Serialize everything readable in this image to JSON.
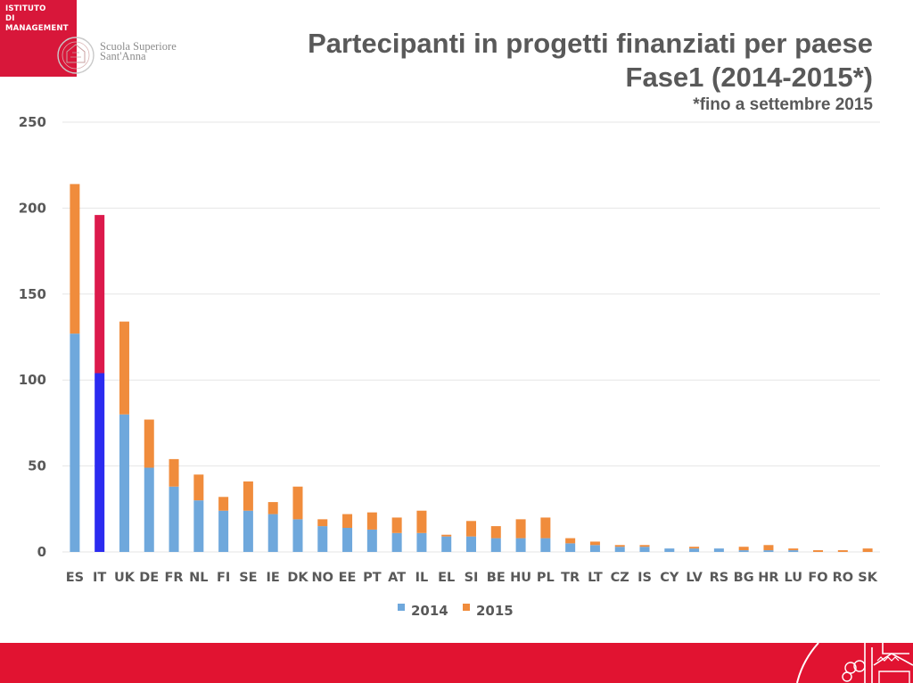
{
  "header": {
    "institute_line1": "ISTITUTO",
    "institute_line2": "DI MANAGEMENT",
    "school_line1": "Scuola Superiore",
    "school_line2": "Sant'Anna"
  },
  "colors": {
    "brand_red": "#d8173a",
    "series_2014": "#6fa8dc",
    "series_2015": "#f08c3c",
    "highlight_2014": "#2b2bf0",
    "highlight_2015": "#dc1a4c",
    "gridline": "#e6e6e6",
    "text": "#595959"
  },
  "chart_data": {
    "type": "bar",
    "stacked": true,
    "title": "Partecipanti in progetti finanziati per paese",
    "subtitle": "Fase1 (2014-2015*)",
    "note": "*fino a settembre 2015",
    "xlabel": "",
    "ylabel": "",
    "ylim": [
      0,
      250
    ],
    "yticks": [
      0,
      50,
      100,
      150,
      200,
      250
    ],
    "grid": true,
    "legend_position": "bottom-center",
    "highlighted_category": "IT",
    "categories": [
      "ES",
      "IT",
      "UK",
      "DE",
      "FR",
      "NL",
      "FI",
      "SE",
      "IE",
      "DK",
      "NO",
      "EE",
      "PT",
      "AT",
      "IL",
      "EL",
      "SI",
      "BE",
      "HU",
      "PL",
      "TR",
      "LT",
      "CZ",
      "IS",
      "CY",
      "LV",
      "RS",
      "BG",
      "HR",
      "LU",
      "FO",
      "RO",
      "SK"
    ],
    "series": [
      {
        "name": "2014",
        "values": [
          127,
          104,
          80,
          49,
          38,
          30,
          24,
          24,
          22,
          19,
          15,
          14,
          13,
          11,
          11,
          9,
          9,
          8,
          8,
          8,
          5,
          4,
          3,
          3,
          2,
          2,
          2,
          1,
          1,
          1,
          0,
          0,
          0
        ]
      },
      {
        "name": "2015",
        "values": [
          87,
          92,
          54,
          28,
          16,
          15,
          8,
          17,
          7,
          19,
          4,
          8,
          10,
          9,
          13,
          1,
          9,
          7,
          11,
          12,
          3,
          2,
          1,
          1,
          0,
          1,
          0,
          2,
          3,
          1,
          1,
          1,
          2
        ]
      }
    ]
  }
}
